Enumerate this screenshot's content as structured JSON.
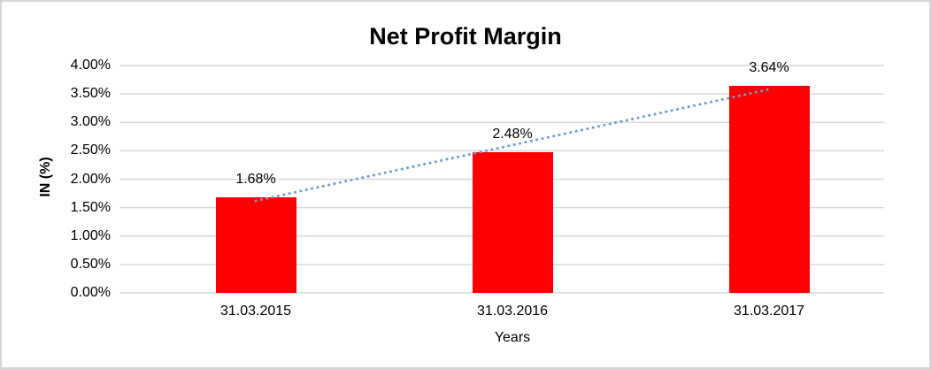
{
  "chart_data": {
    "type": "bar",
    "title": "Net Profit Margin",
    "xlabel": "Years",
    "ylabel": "IN (%)",
    "categories": [
      "31.03.2015",
      "31.03.2016",
      "31.03.2017"
    ],
    "values": [
      1.68,
      2.48,
      3.64
    ],
    "data_labels": [
      "1.68%",
      "2.48%",
      "3.64%"
    ],
    "ylim": [
      0,
      4
    ],
    "ytick_step": 0.5,
    "ytick_labels": [
      "0.00%",
      "0.50%",
      "1.00%",
      "1.50%",
      "2.00%",
      "2.50%",
      "3.00%",
      "3.50%",
      "4.00%"
    ],
    "grid": true,
    "legend": "none",
    "bar_color": "#ff0000",
    "gridline_color": "#d9d9d9",
    "trendline": {
      "type": "linear",
      "style": "dotted",
      "color": "#6b9bd5",
      "fitted_values": [
        1.62,
        2.6,
        3.58
      ]
    }
  }
}
